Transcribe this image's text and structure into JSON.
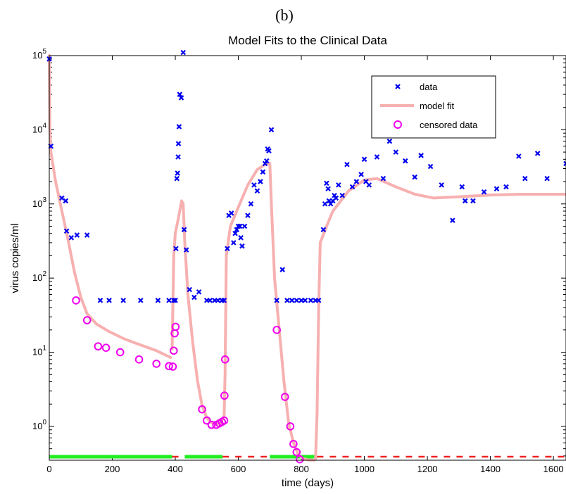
{
  "panel_label": "(b)",
  "colors": {
    "data": "#0000ee",
    "model_fit": "#f7b0b0",
    "censored": "#ee00ee",
    "treatment_on": "#22ee22",
    "treatment_off": "#ee2222"
  },
  "chart_data": {
    "type": "scatter",
    "title": "Model Fits to the Clinical Data",
    "xlabel": "time (days)",
    "ylabel": "virus copies/ml",
    "xlim": [
      0,
      1640
    ],
    "ylim": [
      0.35,
      100000
    ],
    "yscale": "log",
    "x_ticks": [
      0,
      200,
      400,
      600,
      800,
      1000,
      1200,
      1400,
      1600
    ],
    "y_tick_labels": [
      {
        "base": "10",
        "exp": "0",
        "value": 1
      },
      {
        "base": "10",
        "exp": "1",
        "value": 10
      },
      {
        "base": "10",
        "exp": "2",
        "value": 100
      },
      {
        "base": "10",
        "exp": "3",
        "value": 1000
      },
      {
        "base": "10",
        "exp": "4",
        "value": 10000
      },
      {
        "base": "10",
        "exp": "5",
        "value": 100000
      }
    ],
    "legend_position": "top-right",
    "legend": [
      {
        "key": "data",
        "label": "data",
        "marker": "x"
      },
      {
        "key": "model_fit",
        "label": "model fit",
        "marker": "line"
      },
      {
        "key": "censored",
        "label": "censored data",
        "marker": "o"
      }
    ],
    "series": [
      {
        "key": "data",
        "name": "data",
        "points": [
          [
            0,
            90000
          ],
          [
            5,
            6000
          ],
          [
            40,
            1200
          ],
          [
            52,
            1100
          ],
          [
            55,
            430
          ],
          [
            70,
            350
          ],
          [
            88,
            380
          ],
          [
            120,
            380
          ],
          [
            162,
            50
          ],
          [
            190,
            50
          ],
          [
            235,
            50
          ],
          [
            290,
            50
          ],
          [
            345,
            50
          ],
          [
            380,
            50
          ],
          [
            395,
            50
          ],
          [
            400,
            50
          ],
          [
            402,
            250
          ],
          [
            405,
            2200
          ],
          [
            407,
            2600
          ],
          [
            409,
            4300
          ],
          [
            410,
            6500
          ],
          [
            412,
            11000
          ],
          [
            414,
            30000
          ],
          [
            419,
            27000
          ],
          [
            425,
            110000
          ],
          [
            428,
            450
          ],
          [
            435,
            240
          ],
          [
            445,
            70
          ],
          [
            460,
            55
          ],
          [
            475,
            65
          ],
          [
            500,
            50
          ],
          [
            510,
            50
          ],
          [
            525,
            50
          ],
          [
            535,
            50
          ],
          [
            548,
            50
          ],
          [
            555,
            50
          ],
          [
            565,
            250
          ],
          [
            570,
            700
          ],
          [
            578,
            750
          ],
          [
            585,
            300
          ],
          [
            590,
            400
          ],
          [
            595,
            450
          ],
          [
            600,
            500
          ],
          [
            605,
            500
          ],
          [
            608,
            350
          ],
          [
            612,
            270
          ],
          [
            620,
            500
          ],
          [
            630,
            700
          ],
          [
            640,
            1000
          ],
          [
            650,
            1800
          ],
          [
            660,
            1500
          ],
          [
            670,
            2000
          ],
          [
            678,
            2700
          ],
          [
            685,
            3500
          ],
          [
            690,
            3800
          ],
          [
            693,
            5500
          ],
          [
            697,
            5200
          ],
          [
            705,
            10000
          ],
          [
            722,
            50
          ],
          [
            740,
            130
          ],
          [
            755,
            50
          ],
          [
            770,
            50
          ],
          [
            785,
            50
          ],
          [
            800,
            50
          ],
          [
            812,
            50
          ],
          [
            830,
            50
          ],
          [
            845,
            50
          ],
          [
            855,
            50
          ],
          [
            870,
            450
          ],
          [
            875,
            1000
          ],
          [
            880,
            1900
          ],
          [
            885,
            1600
          ],
          [
            888,
            1100
          ],
          [
            893,
            1000
          ],
          [
            900,
            1100
          ],
          [
            905,
            1300
          ],
          [
            910,
            1200
          ],
          [
            918,
            1800
          ],
          [
            930,
            1300
          ],
          [
            945,
            3400
          ],
          [
            962,
            1700
          ],
          [
            975,
            2000
          ],
          [
            990,
            2500
          ],
          [
            1000,
            4000
          ],
          [
            1005,
            2000
          ],
          [
            1015,
            1800
          ],
          [
            1040,
            4300
          ],
          [
            1060,
            2200
          ],
          [
            1080,
            7000
          ],
          [
            1100,
            5000
          ],
          [
            1130,
            3800
          ],
          [
            1160,
            2300
          ],
          [
            1180,
            4500
          ],
          [
            1210,
            3200
          ],
          [
            1245,
            1800
          ],
          [
            1280,
            600
          ],
          [
            1310,
            1700
          ],
          [
            1320,
            1100
          ],
          [
            1345,
            1100
          ],
          [
            1380,
            1450
          ],
          [
            1420,
            1600
          ],
          [
            1450,
            1700
          ],
          [
            1490,
            4400
          ],
          [
            1510,
            2200
          ],
          [
            1550,
            4800
          ],
          [
            1580,
            2200
          ],
          [
            1640,
            3500
          ]
        ]
      },
      {
        "key": "model_fit",
        "name": "model fit",
        "segments": [
          [
            [
              0,
              100000
            ],
            [
              2,
              10000
            ],
            [
              5,
              5000
            ],
            [
              20,
              2000
            ],
            [
              40,
              800
            ],
            [
              60,
              320
            ],
            [
              80,
              120
            ],
            [
              100,
              55
            ],
            [
              120,
              33
            ],
            [
              150,
              24
            ],
            [
              190,
              19
            ],
            [
              240,
              15
            ],
            [
              290,
              12.5
            ],
            [
              340,
              10.5
            ],
            [
              385,
              8.5
            ]
          ],
          [
            [
              390,
              11
            ],
            [
              395,
              200
            ],
            [
              400,
              400
            ],
            [
              410,
              650
            ],
            [
              420,
              1100
            ],
            [
              425,
              1000
            ],
            [
              430,
              300
            ],
            [
              440,
              60
            ],
            [
              455,
              14
            ],
            [
              470,
              4.2
            ],
            [
              485,
              1.9
            ],
            [
              500,
              1.3
            ],
            [
              515,
              1.12
            ],
            [
              530,
              1.08
            ],
            [
              545,
              1.12
            ],
            [
              555,
              1.4
            ],
            [
              558,
              5
            ],
            [
              562,
              200
            ],
            [
              575,
              500
            ],
            [
              600,
              900
            ],
            [
              630,
              1800
            ],
            [
              660,
              2900
            ],
            [
              690,
              3500
            ],
            [
              700,
              3500
            ],
            [
              705,
              1000
            ],
            [
              715,
              100
            ],
            [
              730,
              20
            ],
            [
              745,
              4
            ],
            [
              760,
              1.1
            ],
            [
              775,
              0.6
            ],
            [
              790,
              0.42
            ],
            [
              805,
              0.37
            ],
            [
              820,
              0.355
            ],
            [
              840,
              0.35
            ],
            [
              845,
              0.36
            ],
            [
              850,
              1.5
            ],
            [
              855,
              40
            ],
            [
              860,
              300
            ],
            [
              880,
              500
            ],
            [
              900,
              800
            ],
            [
              950,
              1500
            ],
            [
              1000,
              2100
            ],
            [
              1040,
              2200
            ],
            [
              1100,
              1700
            ],
            [
              1160,
              1350
            ],
            [
              1220,
              1200
            ],
            [
              1300,
              1250
            ],
            [
              1400,
              1320
            ],
            [
              1500,
              1350
            ],
            [
              1640,
              1350
            ]
          ]
        ]
      },
      {
        "key": "censored",
        "name": "censored data",
        "points": [
          [
            85,
            50
          ],
          [
            120,
            27
          ],
          [
            155,
            12
          ],
          [
            180,
            11.5
          ],
          [
            225,
            10
          ],
          [
            285,
            8
          ],
          [
            340,
            7
          ],
          [
            380,
            6.5
          ],
          [
            392,
            6.4
          ],
          [
            395,
            10.5
          ],
          [
            398,
            18
          ],
          [
            401,
            22
          ],
          [
            485,
            1.7
          ],
          [
            500,
            1.2
          ],
          [
            515,
            1.05
          ],
          [
            530,
            1.05
          ],
          [
            540,
            1.1
          ],
          [
            548,
            1.15
          ],
          [
            555,
            1.2
          ],
          [
            556,
            2.6
          ],
          [
            558,
            8
          ],
          [
            722,
            20
          ],
          [
            748,
            2.5
          ],
          [
            765,
            1.0
          ],
          [
            775,
            0.58
          ],
          [
            785,
            0.45
          ],
          [
            795,
            0.36
          ]
        ]
      }
    ],
    "treatment_indicator": {
      "on_intervals": [
        [
          0,
          390
        ],
        [
          430,
          550
        ],
        [
          700,
          850
        ]
      ],
      "off_intervals": [
        [
          390,
          430
        ],
        [
          550,
          700
        ],
        [
          850,
          1640
        ]
      ]
    }
  }
}
